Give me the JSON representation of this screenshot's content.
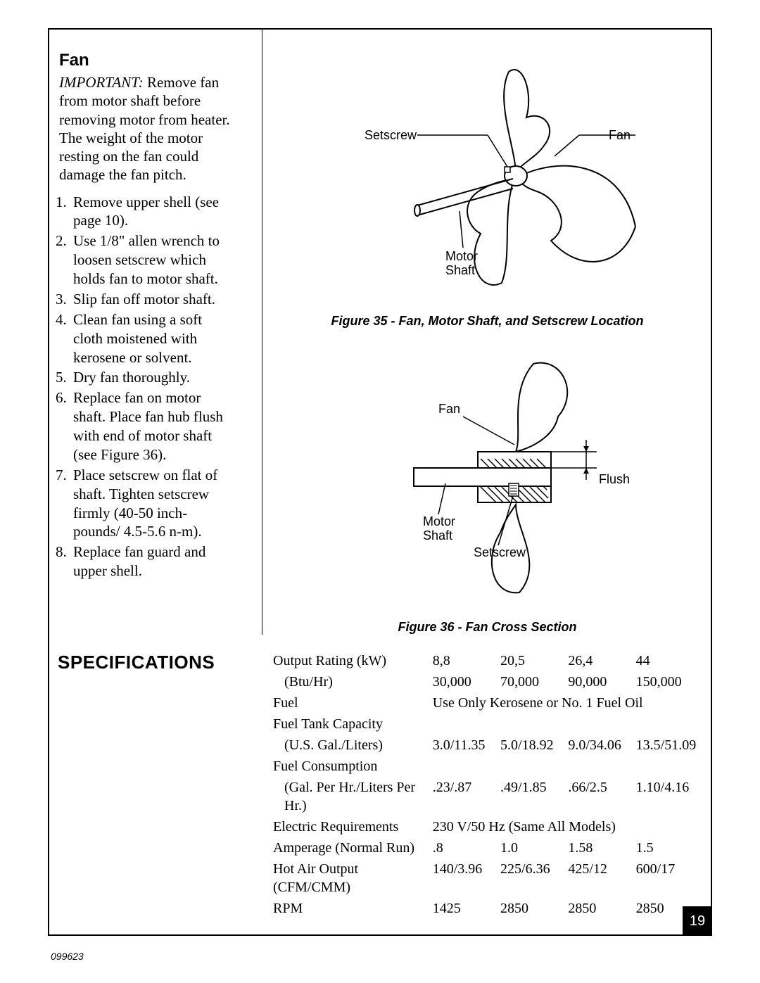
{
  "page": {
    "number": "19",
    "docNumber": "099623"
  },
  "fan": {
    "title": "Fan",
    "importantLabel": "IMPORTANT:",
    "importantText": " Remove fan from motor shaft before removing motor from heater. The weight of the motor resting on the fan could damage the fan pitch.",
    "steps": [
      "Remove upper shell (see page 10).",
      "Use 1/8\" allen wrench to loosen setscrew which holds fan to motor shaft.",
      "Slip fan off motor shaft.",
      "Clean fan using a soft cloth moistened with kerosene or solvent.",
      "Dry fan thoroughly.",
      "Replace fan on motor shaft. Place fan hub flush with end of motor shaft (see Figure 36).",
      "Place setscrew on flat of shaft. Tighten setscrew firmly (40-50 inch-pounds/ 4.5-5.6 n-m).",
      "Replace fan guard and upper shell."
    ]
  },
  "figures": {
    "fig35": {
      "caption": "Figure 35 - Fan, Motor Shaft, and Setscrew Location",
      "labels": {
        "setscrew": "Setscrew",
        "fan": "Fan",
        "motorShaft1": "Motor",
        "motorShaft2": "Shaft"
      }
    },
    "fig36": {
      "caption": "Figure 36 - Fan Cross Section",
      "labels": {
        "fan": "Fan",
        "flush": "Flush",
        "motorShaft1": "Motor",
        "motorShaft2": "Shaft",
        "setscrew": "Setscrew"
      }
    }
  },
  "specs": {
    "heading": "SPECIFICATIONS",
    "rows": [
      {
        "label": "Output Rating (kW)",
        "vals": [
          "8,8",
          "20,5",
          "26,4",
          "44"
        ]
      },
      {
        "label": "(Btu/Hr)",
        "indent": true,
        "vals": [
          "30,000",
          "70,000",
          "90,000",
          "150,000"
        ]
      },
      {
        "label": "Fuel",
        "span": "Use Only Kerosene or No. 1 Fuel Oil"
      },
      {
        "label": "Fuel Tank Capacity"
      },
      {
        "label": "(U.S. Gal./Liters)",
        "indent": true,
        "vals": [
          "3.0/11.35",
          "5.0/18.92",
          "9.0/34.06",
          "13.5/51.09"
        ]
      },
      {
        "label": "Fuel Consumption"
      },
      {
        "label": "(Gal. Per Hr./Liters Per Hr.)",
        "indent": true,
        "vals": [
          ".23/.87",
          ".49/1.85",
          ".66/2.5",
          "1.10/4.16"
        ]
      },
      {
        "label": "Electric Requirements",
        "span": "230 V/50 Hz (Same All Models)"
      },
      {
        "label": "Amperage (Normal Run)",
        "vals": [
          ".8",
          "1.0",
          "1.58",
          "1.5"
        ]
      },
      {
        "label": "Hot Air Output (CFM/CMM)",
        "vals": [
          "140/3.96",
          "225/6.36",
          "425/12",
          "600/17"
        ]
      },
      {
        "label": "RPM",
        "vals": [
          "1425",
          "2850",
          "2850",
          "2850"
        ]
      }
    ]
  },
  "style": {
    "pageBg": "#ffffff",
    "textColor": "#000000",
    "border": "#000000",
    "fontBody": "Times New Roman",
    "fontHeading": "Arial",
    "headingSize": 26,
    "bodySize": 21,
    "captionSize": 18
  }
}
